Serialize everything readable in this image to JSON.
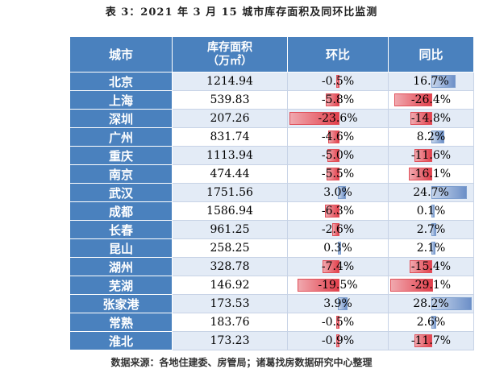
{
  "title": "表 3：2021 年 3 月 15 城市库存面积及同环比监测",
  "headers": {
    "city": "城市",
    "area_line1": "库存面积",
    "area_line2": "（万㎡）",
    "mom": "环比",
    "yoy": "同比"
  },
  "rows": [
    {
      "city": "北京",
      "area": "1214.94",
      "mom": "-0.5%",
      "yoy": "16.7%",
      "mom_v": -0.5,
      "yoy_v": 16.7
    },
    {
      "city": "上海",
      "area": "539.83",
      "mom": "-5.8%",
      "yoy": "-26.4%",
      "mom_v": -5.8,
      "yoy_v": -26.4
    },
    {
      "city": "深圳",
      "area": "207.26",
      "mom": "-23.6%",
      "yoy": "-14.8%",
      "mom_v": -23.6,
      "yoy_v": -14.8
    },
    {
      "city": "广州",
      "area": "831.74",
      "mom": "-4.6%",
      "yoy": "8.2%",
      "mom_v": -4.6,
      "yoy_v": 8.2
    },
    {
      "city": "重庆",
      "area": "1113.94",
      "mom": "-5.0%",
      "yoy": "-11.6%",
      "mom_v": -5.0,
      "yoy_v": -11.6
    },
    {
      "city": "南京",
      "area": "474.44",
      "mom": "-5.5%",
      "yoy": "-16.1%",
      "mom_v": -5.5,
      "yoy_v": -16.1
    },
    {
      "city": "武汉",
      "area": "1751.56",
      "mom": "3.0%",
      "yoy": "24.7%",
      "mom_v": 3.0,
      "yoy_v": 24.7
    },
    {
      "city": "成都",
      "area": "1586.94",
      "mom": "-6.3%",
      "yoy": "0.1%",
      "mom_v": -6.3,
      "yoy_v": 0.1
    },
    {
      "city": "长春",
      "area": "961.25",
      "mom": "-2.6%",
      "yoy": "2.7%",
      "mom_v": -2.6,
      "yoy_v": 2.7
    },
    {
      "city": "昆山",
      "area": "258.25",
      "mom": "0.3%",
      "yoy": "2.1%",
      "mom_v": 0.3,
      "yoy_v": 2.1
    },
    {
      "city": "湖州",
      "area": "328.78",
      "mom": "-7.4%",
      "yoy": "-15.4%",
      "mom_v": -7.4,
      "yoy_v": -15.4
    },
    {
      "city": "芜湖",
      "area": "146.92",
      "mom": "-19.5%",
      "yoy": "-29.1%",
      "mom_v": -19.5,
      "yoy_v": -29.1
    },
    {
      "city": "张家港",
      "area": "173.53",
      "mom": "3.9%",
      "yoy": "28.2%",
      "mom_v": 3.9,
      "yoy_v": 28.2
    },
    {
      "city": "常熟",
      "area": "183.76",
      "mom": "-0.5%",
      "yoy": "2.6%",
      "mom_v": -0.5,
      "yoy_v": 2.6
    },
    {
      "city": "淮北",
      "area": "173.23",
      "mom": "-0.9%",
      "yoy": "-11.7%",
      "mom_v": -0.9,
      "yoy_v": -11.7
    }
  ],
  "source": "数据来源：各地住建委、房管局；诸葛找房数据研究中心整理"
}
